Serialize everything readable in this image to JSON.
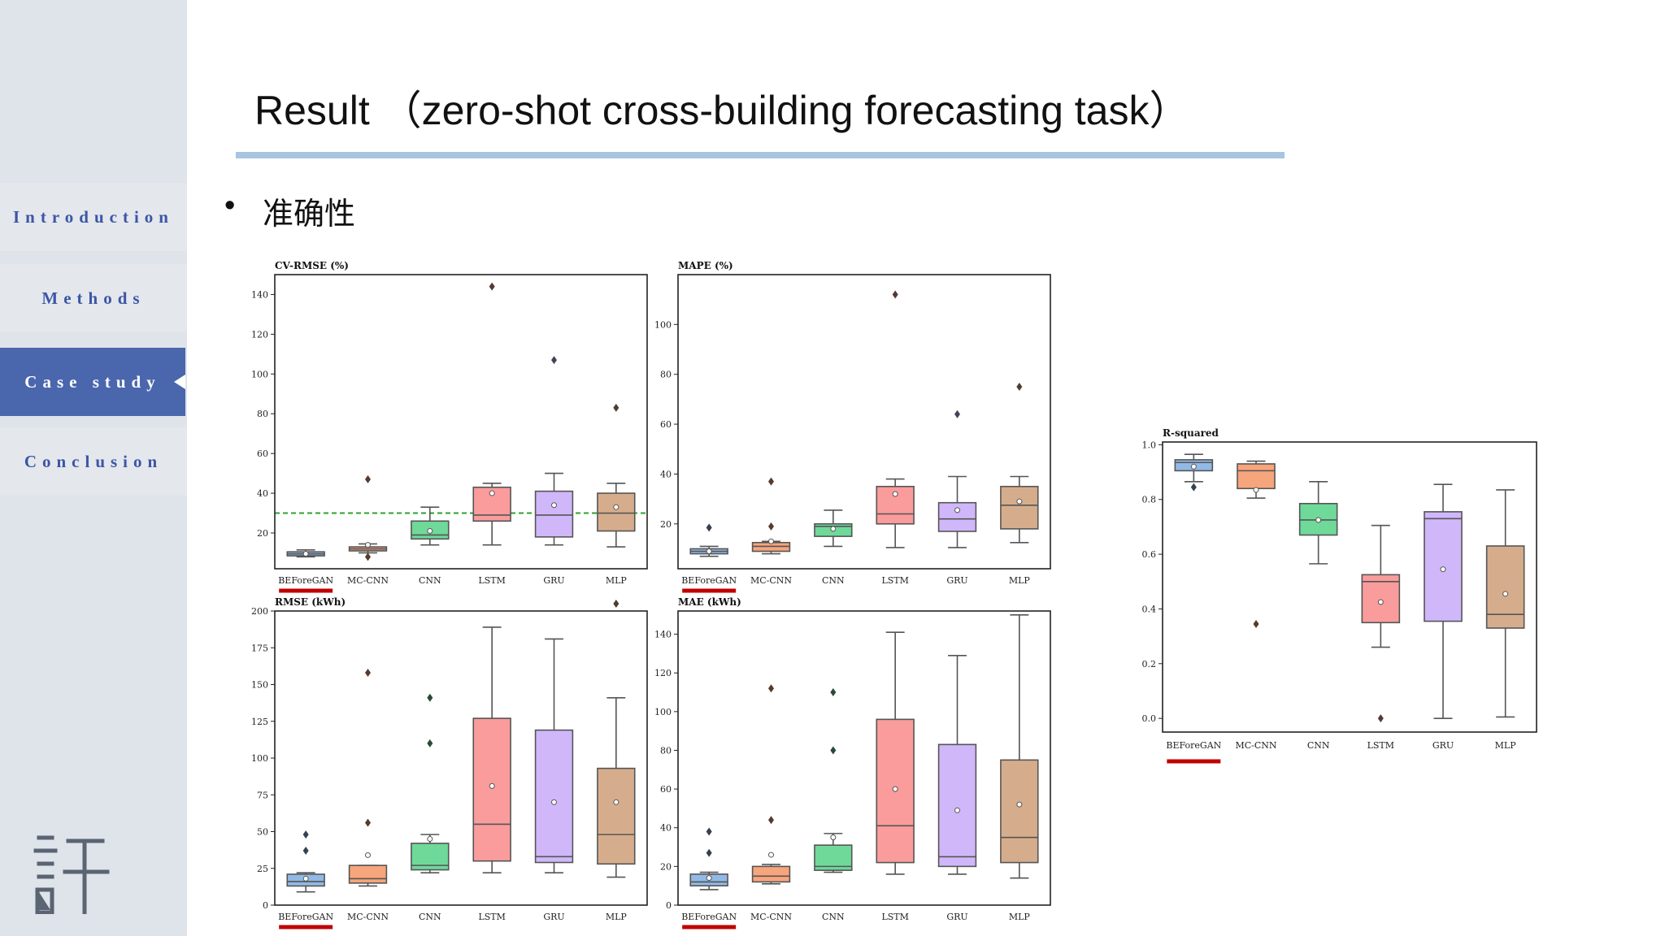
{
  "slide": {
    "title": "Result （zero-shot cross-building forecasting task）",
    "bullet_symbol": "•",
    "bullet_text": "准确性"
  },
  "sidebar": {
    "items": [
      {
        "label": "Introduction",
        "active": false
      },
      {
        "label": "Methods",
        "active": false
      },
      {
        "label": "Case study",
        "active": true
      },
      {
        "label": "Conclusion",
        "active": false
      }
    ]
  },
  "colors": {
    "sidebar_bg": "#dfe3ea",
    "nav_text": "#3b56a6",
    "nav_active_bg": "#4a66ad",
    "title_rule": "#a8c4e0",
    "highlight_underline": "#c00000",
    "reference_line": "#2ca02c",
    "series": {
      "BEForeGAN": "#92b9e6",
      "MC-CNN": "#f7a57c",
      "CNN": "#6fd99a",
      "LSTM": "#fa9c9c",
      "GRU": "#d0b7fa",
      "MLP": "#d6ad8c"
    }
  },
  "chart_data": [
    {
      "type": "box",
      "title": "CV-RMSE (%)",
      "categories": [
        "BEForeGAN",
        "MC-CNN",
        "CNN",
        "LSTM",
        "GRU",
        "MLP"
      ],
      "highlight_category": "BEForeGAN",
      "yticks": [
        20,
        40,
        60,
        80,
        100,
        120,
        140
      ],
      "ylim": [
        2,
        150
      ],
      "reference_line": 30,
      "boxes": [
        {
          "min": 8,
          "q1": 8.5,
          "median": 9.5,
          "q3": 10.5,
          "max": 11.5,
          "mean": 9.5,
          "outliers": []
        },
        {
          "min": 10,
          "q1": 11,
          "median": 12,
          "q3": 13,
          "max": 14.5,
          "mean": 14,
          "outliers": [
            47,
            8
          ]
        },
        {
          "min": 14,
          "q1": 17,
          "median": 19,
          "q3": 26,
          "max": 33,
          "mean": 21,
          "outliers": []
        },
        {
          "min": 14,
          "q1": 26,
          "median": 29,
          "q3": 43,
          "max": 45,
          "mean": 40,
          "outliers": [
            144
          ]
        },
        {
          "min": 14,
          "q1": 18,
          "median": 29,
          "q3": 41,
          "max": 50,
          "mean": 34,
          "outliers": [
            107
          ]
        },
        {
          "min": 13,
          "q1": 21,
          "median": 30,
          "q3": 40,
          "max": 45,
          "mean": 33,
          "outliers": [
            83
          ]
        }
      ]
    },
    {
      "type": "box",
      "title": "MAPE (%)",
      "categories": [
        "BEForeGAN",
        "MC-CNN",
        "CNN",
        "LSTM",
        "GRU",
        "MLP"
      ],
      "highlight_category": "BEForeGAN",
      "yticks": [
        20,
        40,
        60,
        80,
        100
      ],
      "ylim": [
        2,
        120
      ],
      "boxes": [
        {
          "min": 7,
          "q1": 8,
          "median": 9,
          "q3": 10,
          "max": 11,
          "mean": 9,
          "outliers": [
            18.5
          ]
        },
        {
          "min": 8,
          "q1": 9,
          "median": 11,
          "q3": 12.5,
          "max": 13,
          "mean": 13,
          "outliers": [
            37,
            19
          ]
        },
        {
          "min": 11,
          "q1": 15,
          "median": 19,
          "q3": 20,
          "max": 25.5,
          "mean": 18,
          "outliers": []
        },
        {
          "min": 10.5,
          "q1": 20,
          "median": 24,
          "q3": 35,
          "max": 38,
          "mean": 32,
          "outliers": [
            112
          ]
        },
        {
          "min": 10.5,
          "q1": 17,
          "median": 22,
          "q3": 28.5,
          "max": 39,
          "mean": 25.5,
          "outliers": [
            64
          ]
        },
        {
          "min": 12.5,
          "q1": 18,
          "median": 27.5,
          "q3": 35,
          "max": 39,
          "mean": 29,
          "outliers": [
            75
          ]
        }
      ]
    },
    {
      "type": "box",
      "title": "RMSE (kWh)",
      "categories": [
        "BEForeGAN",
        "MC-CNN",
        "CNN",
        "LSTM",
        "GRU",
        "MLP"
      ],
      "highlight_category": "BEForeGAN",
      "yticks": [
        0,
        25,
        50,
        75,
        100,
        125,
        150,
        175,
        200
      ],
      "ylim": [
        0,
        200
      ],
      "boxes": [
        {
          "min": 9,
          "q1": 13,
          "median": 16,
          "q3": 21,
          "max": 22,
          "mean": 18,
          "outliers": [
            48,
            37
          ]
        },
        {
          "min": 13,
          "q1": 15,
          "median": 18,
          "q3": 27,
          "max": 27,
          "mean": 34,
          "outliers": [
            158,
            56
          ]
        },
        {
          "min": 22,
          "q1": 24,
          "median": 27,
          "q3": 42,
          "max": 48,
          "mean": 45,
          "outliers": [
            141,
            110
          ]
        },
        {
          "min": 22,
          "q1": 30,
          "median": 55,
          "q3": 127,
          "max": 189,
          "mean": 81,
          "outliers": []
        },
        {
          "min": 22,
          "q1": 29,
          "median": 33,
          "q3": 119,
          "max": 181,
          "mean": 70,
          "outliers": []
        },
        {
          "min": 19,
          "q1": 28,
          "median": 48,
          "q3": 93,
          "max": 141,
          "mean": 70,
          "outliers": [
            205
          ]
        }
      ]
    },
    {
      "type": "box",
      "title": "MAE (kWh)",
      "categories": [
        "BEForeGAN",
        "MC-CNN",
        "CNN",
        "LSTM",
        "GRU",
        "MLP"
      ],
      "highlight_category": "BEForeGAN",
      "yticks": [
        0,
        20,
        40,
        60,
        80,
        100,
        120,
        140
      ],
      "ylim": [
        0,
        152
      ],
      "boxes": [
        {
          "min": 8,
          "q1": 10,
          "median": 12,
          "q3": 16,
          "max": 17,
          "mean": 14,
          "outliers": [
            38,
            27
          ]
        },
        {
          "min": 11,
          "q1": 12,
          "median": 15,
          "q3": 20,
          "max": 21,
          "mean": 26,
          "outliers": [
            112,
            44
          ]
        },
        {
          "min": 17,
          "q1": 18,
          "median": 20,
          "q3": 31,
          "max": 37,
          "mean": 35,
          "outliers": [
            110,
            80
          ]
        },
        {
          "min": 16,
          "q1": 22,
          "median": 41,
          "q3": 96,
          "max": 141,
          "mean": 60,
          "outliers": []
        },
        {
          "min": 16,
          "q1": 20,
          "median": 25,
          "q3": 83,
          "max": 129,
          "mean": 49,
          "outliers": []
        },
        {
          "min": 14,
          "q1": 22,
          "median": 35,
          "q3": 75,
          "max": 150,
          "mean": 52,
          "outliers": []
        }
      ]
    },
    {
      "type": "box",
      "title": "R-squared",
      "categories": [
        "BEForeGAN",
        "MC-CNN",
        "CNN",
        "LSTM",
        "GRU",
        "MLP"
      ],
      "highlight_category": "BEForeGAN",
      "yticks": [
        0.0,
        0.2,
        0.4,
        0.6,
        0.8,
        1.0
      ],
      "ylim": [
        -0.05,
        1.01
      ],
      "boxes": [
        {
          "min": 0.865,
          "q1": 0.905,
          "median": 0.935,
          "q3": 0.945,
          "max": 0.965,
          "mean": 0.92,
          "outliers": [
            0.845
          ]
        },
        {
          "min": 0.805,
          "q1": 0.84,
          "median": 0.905,
          "q3": 0.93,
          "max": 0.94,
          "mean": 0.835,
          "outliers": [
            0.345
          ]
        },
        {
          "min": 0.565,
          "q1": 0.67,
          "median": 0.725,
          "q3": 0.785,
          "max": 0.865,
          "mean": 0.725,
          "outliers": []
        },
        {
          "min": 0.26,
          "q1": 0.35,
          "median": 0.5,
          "q3": 0.525,
          "max": 0.705,
          "mean": 0.425,
          "outliers": [
            0.0
          ]
        },
        {
          "min": 0.0,
          "q1": 0.355,
          "median": 0.73,
          "q3": 0.755,
          "max": 0.855,
          "mean": 0.545,
          "outliers": []
        },
        {
          "min": 0.005,
          "q1": 0.33,
          "median": 0.38,
          "q3": 0.63,
          "max": 0.835,
          "mean": 0.455,
          "outliers": []
        }
      ]
    }
  ]
}
